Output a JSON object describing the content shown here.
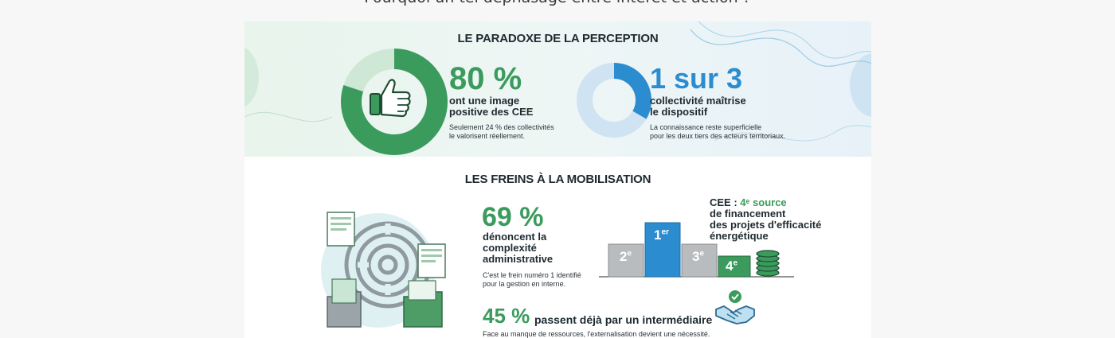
{
  "page": {
    "heading": "Pourquoi un tel déphasage entre intérêt et action ?"
  },
  "perception": {
    "title": "LE PARADOXE DE LA PERCEPTION",
    "left": {
      "stat": "80 %",
      "label_line1": "ont une image",
      "label_line2": "positive des CEE",
      "note_line1": "Seulement 24 % des collectivités",
      "note_line2": "le valorisent réellement."
    },
    "right": {
      "stat": "1 sur 3",
      "label_line1": "collectivité maîtrise",
      "label_line2": "le dispositif",
      "note_line1": "La connaissance reste superficielle",
      "note_line2": "pour les deux tiers des acteurs territoriaux."
    }
  },
  "freins": {
    "title": "LES FREINS À LA MOBILISATION",
    "complexity": {
      "stat": "69 %",
      "label_line1": "dénoncent la",
      "label_line2": "complexité",
      "label_line3": "administrative",
      "note_line1": "C'est le frein numéro 1 identifié",
      "note_line2": "pour la gestion en interne."
    },
    "source": {
      "prefix": "CEE : ",
      "highlight": "4ᵉ source",
      "line2": "de financement",
      "line3": "des projets d'efficacité",
      "line4": "énergétique"
    },
    "podium": {
      "first": "1",
      "first_sup": "er",
      "second": "2",
      "second_sup": "e",
      "third": "3",
      "third_sup": "e",
      "fourth": "4",
      "fourth_sup": "e"
    },
    "intermediary": {
      "stat": "45 %",
      "label": "passent déjà par un intermédiaire",
      "note": "Face au manque de ressources, l'externalisation devient une nécessité."
    }
  },
  "colors": {
    "green": "#3a9b5c",
    "blue": "#2b8ccf",
    "light_green": "#cfe8d6",
    "light_blue": "#cfe3f2",
    "grey_bar": "#b9bcbe"
  },
  "icons": [
    "thumbs-up-icon",
    "maze-documents-icon",
    "coins-stack-icon",
    "handshake-icon"
  ]
}
